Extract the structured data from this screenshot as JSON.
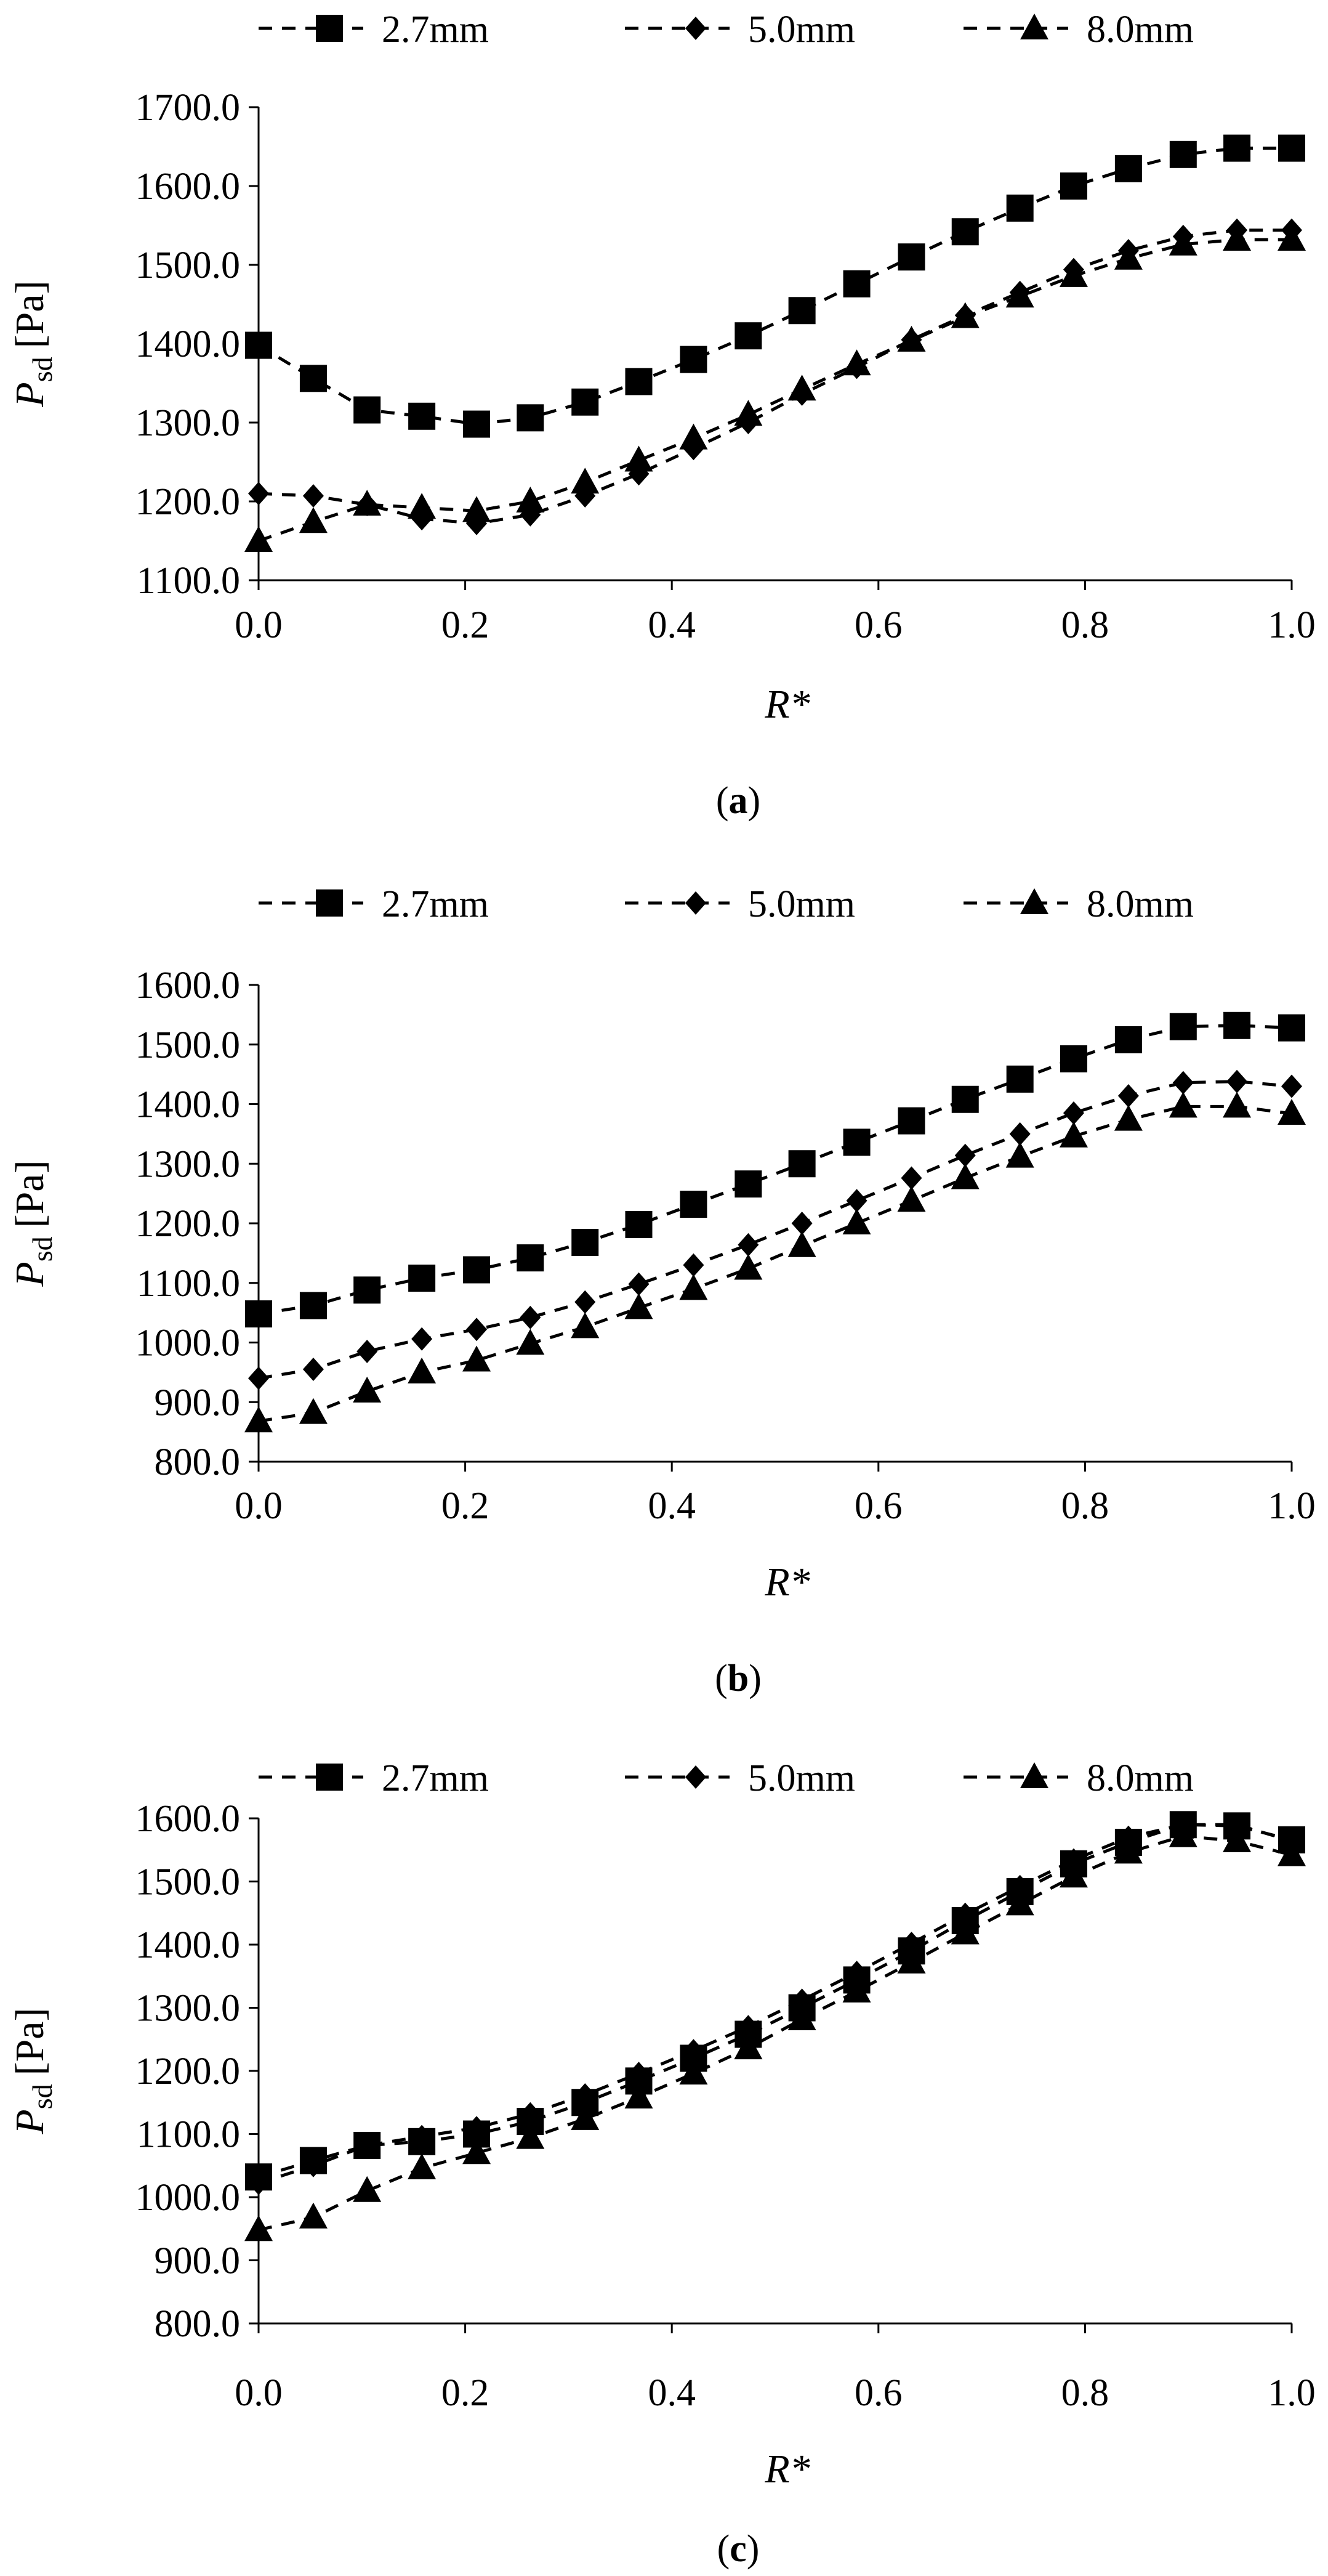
{
  "legend_labels": [
    "2.7mm",
    "5.0mm",
    "8.0mm"
  ],
  "chart_data": [
    {
      "type": "line",
      "panel_label": "a",
      "xlabel": "R*",
      "ylabel_main": "P",
      "ylabel_sub": "sd",
      "ylabel_unit": "[Pa]",
      "xlim": [
        0,
        1
      ],
      "ylim": [
        1100,
        1700
      ],
      "x_ticks": [
        "0.0",
        "0.2",
        "0.4",
        "0.6",
        "0.8",
        "1.0"
      ],
      "y_ticks": [
        "1100.0",
        "1200.0",
        "1300.0",
        "1400.0",
        "1500.0",
        "1600.0",
        "1700.0"
      ],
      "x": [
        0,
        0.053,
        0.105,
        0.158,
        0.211,
        0.263,
        0.316,
        0.368,
        0.421,
        0.474,
        0.526,
        0.579,
        0.632,
        0.684,
        0.737,
        0.789,
        0.842,
        0.895,
        0.947,
        1.0
      ],
      "series": [
        {
          "name": "2.7mm",
          "marker": "square",
          "values": [
            1398,
            1356,
            1316,
            1308,
            1298,
            1306,
            1326,
            1352,
            1380,
            1410,
            1442,
            1476,
            1510,
            1542,
            1572,
            1600,
            1622,
            1640,
            1648,
            1648
          ]
        },
        {
          "name": "5.0mm",
          "marker": "diamond",
          "values": [
            1210,
            1207,
            1196,
            1178,
            1172,
            1183,
            1207,
            1235,
            1267,
            1300,
            1336,
            1370,
            1405,
            1436,
            1465,
            1494,
            1518,
            1536,
            1544,
            1544
          ]
        },
        {
          "name": "8.0mm",
          "marker": "triangle",
          "values": [
            1150,
            1174,
            1196,
            1192,
            1188,
            1200,
            1224,
            1252,
            1280,
            1310,
            1342,
            1374,
            1404,
            1434,
            1460,
            1486,
            1508,
            1526,
            1532,
            1532
          ]
        }
      ]
    },
    {
      "type": "line",
      "panel_label": "b",
      "xlabel": "R*",
      "ylabel_main": "P",
      "ylabel_sub": "sd",
      "ylabel_unit": "[Pa]",
      "xlim": [
        0,
        1
      ],
      "ylim": [
        800,
        1600
      ],
      "x_ticks": [
        "0.0",
        "0.2",
        "0.4",
        "0.6",
        "0.8",
        "1.0"
      ],
      "y_ticks": [
        "800.0",
        "900.0",
        "1000.0",
        "1100.0",
        "1200.0",
        "1300.0",
        "1400.0",
        "1500.0",
        "1600.0"
      ],
      "x": [
        0,
        0.053,
        0.105,
        0.158,
        0.211,
        0.263,
        0.316,
        0.368,
        0.421,
        0.474,
        0.526,
        0.579,
        0.632,
        0.684,
        0.737,
        0.789,
        0.842,
        0.895,
        0.947,
        1.0
      ],
      "series": [
        {
          "name": "2.7mm",
          "marker": "square",
          "values": [
            1048,
            1062,
            1088,
            1108,
            1122,
            1142,
            1168,
            1198,
            1232,
            1266,
            1300,
            1336,
            1372,
            1408,
            1442,
            1476,
            1508,
            1530,
            1532,
            1528
          ]
        },
        {
          "name": "5.0mm",
          "marker": "diamond",
          "values": [
            940,
            955,
            985,
            1006,
            1022,
            1042,
            1068,
            1098,
            1130,
            1164,
            1200,
            1238,
            1276,
            1314,
            1350,
            1385,
            1414,
            1436,
            1438,
            1430
          ]
        },
        {
          "name": "8.0mm",
          "marker": "triangle",
          "values": [
            868,
            882,
            918,
            950,
            970,
            998,
            1026,
            1058,
            1090,
            1124,
            1162,
            1200,
            1238,
            1276,
            1312,
            1346,
            1374,
            1396,
            1396,
            1384
          ]
        }
      ]
    },
    {
      "type": "line",
      "panel_label": "c",
      "xlabel": "R*",
      "ylabel_main": "P",
      "ylabel_sub": "sd",
      "ylabel_unit": "[Pa]",
      "xlim": [
        0,
        1
      ],
      "ylim": [
        800,
        1600
      ],
      "x_ticks": [
        "0.0",
        "0.2",
        "0.4",
        "0.6",
        "0.8",
        "1.0"
      ],
      "y_ticks": [
        "800.0",
        "900.0",
        "1000.0",
        "1100.0",
        "1200.0",
        "1300.0",
        "1400.0",
        "1500.0",
        "1600.0"
      ],
      "x": [
        0,
        0.053,
        0.105,
        0.158,
        0.211,
        0.263,
        0.316,
        0.368,
        0.421,
        0.474,
        0.526,
        0.579,
        0.632,
        0.684,
        0.737,
        0.789,
        0.842,
        0.895,
        0.947,
        1.0
      ],
      "series": [
        {
          "name": "2.7mm",
          "marker": "square",
          "values": [
            1032,
            1058,
            1082,
            1088,
            1100,
            1120,
            1150,
            1184,
            1220,
            1258,
            1300,
            1344,
            1390,
            1438,
            1484,
            1528,
            1562,
            1590,
            1588,
            1566
          ]
        },
        {
          "name": "5.0mm",
          "marker": "diamond",
          "values": [
            1022,
            1050,
            1082,
            1096,
            1110,
            1132,
            1162,
            1196,
            1232,
            1270,
            1312,
            1356,
            1402,
            1448,
            1492,
            1534,
            1570,
            1590,
            1590,
            1564
          ]
        },
        {
          "name": "8.0mm",
          "marker": "triangle",
          "values": [
            948,
            968,
            1010,
            1046,
            1070,
            1094,
            1124,
            1158,
            1196,
            1236,
            1282,
            1326,
            1372,
            1418,
            1464,
            1508,
            1546,
            1572,
            1564,
            1542
          ]
        }
      ]
    }
  ]
}
